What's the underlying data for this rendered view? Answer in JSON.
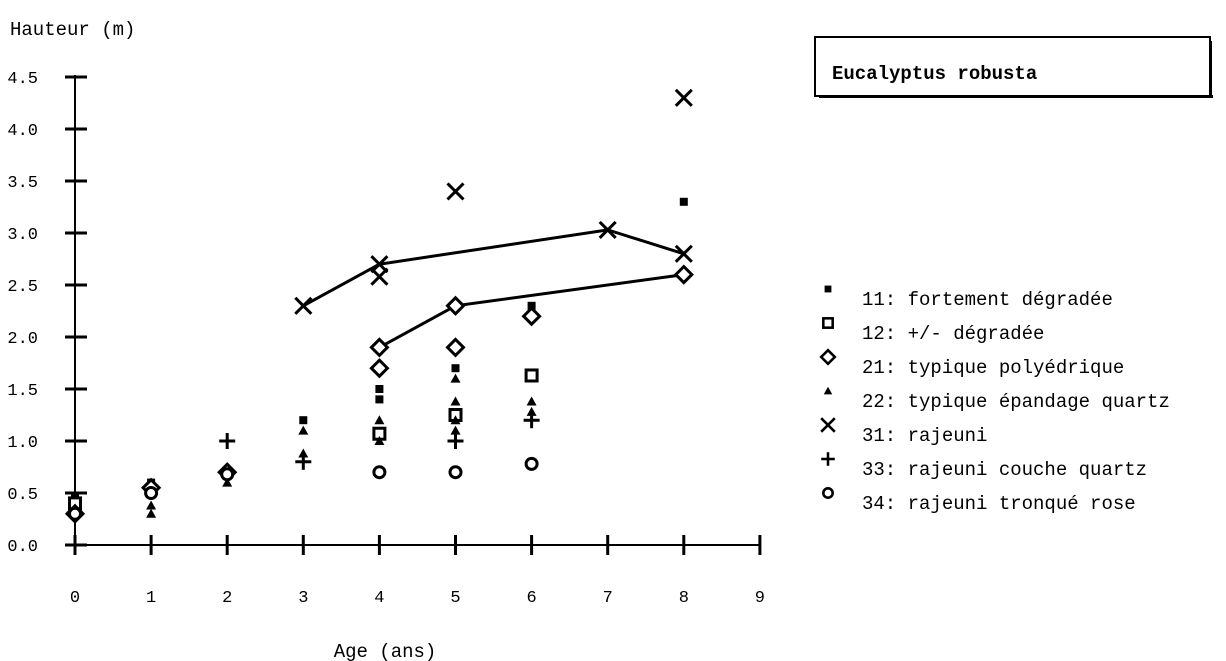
{
  "chart_data": {
    "type": "scatter",
    "title": "Eucalyptus robusta",
    "xlabel": "Age (ans)",
    "ylabel": "Hauteur (m)",
    "xlim": [
      0,
      9
    ],
    "ylim": [
      0,
      4.5
    ],
    "x_ticks": [
      "0",
      "1",
      "2",
      "3",
      "4",
      "5",
      "6",
      "7",
      "8",
      "9"
    ],
    "y_ticks": [
      "0.0",
      "0.5",
      "1.0",
      "1.5",
      "2.0",
      "2.5",
      "3.0",
      "3.5",
      "4.0",
      "4.5"
    ],
    "grid": false,
    "legend_position": "right",
    "series": [
      {
        "name": "11: fortement dégradée",
        "marker": "small-filled-square",
        "points": [
          [
            0,
            0.45
          ],
          [
            1,
            0.6
          ],
          [
            3,
            1.2
          ],
          [
            4,
            1.5
          ],
          [
            4,
            1.4
          ],
          [
            5,
            1.7
          ],
          [
            6,
            2.3
          ],
          [
            8,
            3.3
          ]
        ]
      },
      {
        "name": "12: +/- dégradée",
        "marker": "open-square",
        "points": [
          [
            0,
            0.4
          ],
          [
            4,
            1.07
          ],
          [
            5,
            1.25
          ],
          [
            6,
            1.63
          ]
        ]
      },
      {
        "name": "21: typique polyédrique",
        "marker": "open-diamond",
        "points": [
          [
            0,
            0.3
          ],
          [
            1,
            0.55
          ],
          [
            2,
            0.7
          ],
          [
            4,
            1.7
          ],
          [
            4,
            1.9
          ],
          [
            5,
            1.9
          ],
          [
            5,
            2.3
          ],
          [
            6,
            2.2
          ],
          [
            8,
            2.6
          ]
        ]
      },
      {
        "name": "22: typique épandage quartz",
        "marker": "small-filled-triangle",
        "points": [
          [
            1,
            0.3
          ],
          [
            1,
            0.38
          ],
          [
            2,
            0.6
          ],
          [
            2,
            0.7
          ],
          [
            3,
            1.1
          ],
          [
            3,
            0.88
          ],
          [
            4,
            1.2
          ],
          [
            4,
            1.0
          ],
          [
            5,
            1.6
          ],
          [
            5,
            1.38
          ],
          [
            5,
            1.2
          ],
          [
            5,
            1.1
          ],
          [
            6,
            1.38
          ],
          [
            6,
            1.28
          ]
        ]
      },
      {
        "name": "31: rajeuni",
        "marker": "x",
        "points": [
          [
            3,
            2.3
          ],
          [
            4,
            2.7
          ],
          [
            4,
            2.58
          ],
          [
            5,
            3.4
          ],
          [
            7,
            3.03
          ],
          [
            8,
            2.8
          ],
          [
            8,
            4.3
          ]
        ],
        "connected_points": [
          [
            3,
            2.3
          ],
          [
            4,
            2.7
          ],
          [
            7,
            3.03
          ],
          [
            8,
            2.8
          ]
        ]
      },
      {
        "name": "33: rajeuni couche quartz",
        "marker": "plus",
        "points": [
          [
            2,
            1.0
          ],
          [
            3,
            0.8
          ],
          [
            5,
            1.0
          ],
          [
            6,
            1.2
          ]
        ]
      },
      {
        "name": "34: rajeuni tronqué rose",
        "marker": "open-circle",
        "points": [
          [
            0,
            0.3
          ],
          [
            1,
            0.5
          ],
          [
            2,
            0.68
          ],
          [
            4,
            0.7
          ],
          [
            5,
            0.7
          ],
          [
            6,
            0.78
          ]
        ]
      }
    ],
    "connecting_lines": [
      {
        "points": [
          [
            3,
            2.3
          ],
          [
            4,
            2.7
          ],
          [
            7,
            3.03
          ],
          [
            8,
            2.8
          ]
        ]
      },
      {
        "points": [
          [
            4,
            1.9
          ],
          [
            5,
            2.3
          ],
          [
            8,
            2.6
          ]
        ]
      }
    ]
  }
}
